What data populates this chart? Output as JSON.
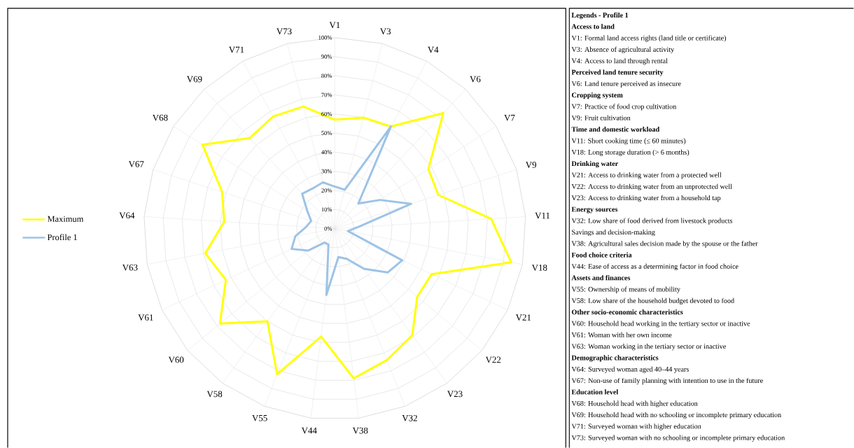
{
  "chart_data": {
    "type": "radar",
    "categories": [
      "V1",
      "V3",
      "V4",
      "V6",
      "V7",
      "V9",
      "V11",
      "V18",
      "V21",
      "V22",
      "V23",
      "V32",
      "V38",
      "V44",
      "V55",
      "V58",
      "V60",
      "V61",
      "V63",
      "V64",
      "V67",
      "V68",
      "V69",
      "V71",
      "V73"
    ],
    "series": [
      {
        "name": "Maximum",
        "color": "#ffff00",
        "values": [
          57,
          60,
          61,
          83,
          58,
          57,
          82,
          94,
          56,
          56,
          69,
          74,
          79,
          57,
          82,
          60,
          78,
          63,
          69,
          58,
          62,
          82,
          65,
          67,
          66
        ]
      },
      {
        "name": "Profile 1",
        "color": "#9dc3e6",
        "values": [
          22,
          21,
          61,
          18,
          28,
          42,
          12,
          7,
          39,
          36,
          26,
          17,
          15,
          35,
          9,
          9,
          18,
          25,
          21,
          15,
          13,
          17,
          25,
          24,
          25
        ]
      }
    ],
    "ylim": [
      0,
      100
    ],
    "yticks": [
      {
        "value": 0,
        "label": "0%"
      },
      {
        "value": 10,
        "label": "10%"
      },
      {
        "value": 20,
        "label": "20%"
      },
      {
        "value": 30,
        "label": "30%"
      },
      {
        "value": 40,
        "label": "40%"
      },
      {
        "value": 50,
        "label": "50%"
      },
      {
        "value": 60,
        "label": "60%"
      },
      {
        "value": 70,
        "label": "70%"
      },
      {
        "value": 80,
        "label": "80%"
      },
      {
        "value": 90,
        "label": "90%"
      },
      {
        "value": 100,
        "label": "100%"
      }
    ],
    "grid": true,
    "legend": "left",
    "annotations": [
      "**Legends - Profile 1**",
      "**Access to land**",
      "V1: Formal land access rights (land title or certificate)",
      "V3: Absence of agricultural activity",
      "V4: Access to land through rental",
      "**Perceived land tenure security**",
      "V6: Land tenure perceived as insecure",
      "**Cropping system**",
      "V7: Practice of food crop cultivation",
      "V9: Fruit cultivation",
      "**Time and domestic workload**",
      "V11: Short cooking time (≤ 60 minutes)",
      "V18: Long storage duration (> 6 months)",
      "**Drinking water**",
      "V21: Access to drinking water from a protected well",
      "V22: Access to drinking water from an unprotected well",
      "V23: Access to drinking water from a household tap",
      "**Energy sources**",
      "V32: Low share of food derived from livestock products",
      "Savings and decision-making",
      "V38: Agricultural sales decision made by the spouse or the father",
      "**Food choice criteria**",
      "V44: Ease of access as a determining factor in food choice",
      "**Assets and finances**",
      "V55: Ownership of means of mobility",
      "V58: Low share of the household budget devoted to food",
      "**Other socio-economic characteristics**",
      "V60: Household head working in the tertiary sector or inactive",
      "V61: Woman with her own income",
      "V63: Woman working in the tertiary sector or inactive",
      "**Demographic characteristics**",
      "V64: Surveyed woman aged 40–44 years",
      "V67: Non-use of family planning with intention to use in the future",
      "**Education level**",
      "V68: Household head with higher education",
      "V69: Household head with no schooling or incomplete primary education",
      "V71: Surveyed woman with higher education",
      "V73: Surveyed woman with no schooling or incomplete primary education"
    ]
  }
}
